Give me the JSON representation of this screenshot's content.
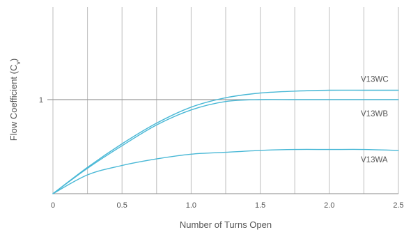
{
  "chart_data": {
    "type": "line",
    "xlabel": "Number of Turns Open",
    "ylabel": "Flow Coefficient (C",
    "ylabel_subscript": "v",
    "ylabel_suffix": ")",
    "xlim": [
      0,
      2.5
    ],
    "ylim": [
      0,
      1.5
    ],
    "x_ticks": [
      0,
      0.5,
      1.0,
      1.5,
      2.0,
      2.5
    ],
    "x_tick_labels": [
      "0",
      "0.5",
      "1.0",
      "1.5",
      "2.0",
      "2.5"
    ],
    "x_gridlines": [
      0,
      0.25,
      0.5,
      0.75,
      1.0,
      1.25,
      1.5,
      1.75,
      2.0,
      2.25,
      2.5
    ],
    "y_ticks": [
      1
    ],
    "y_tick_labels": [
      "1"
    ],
    "grid": true,
    "line_color": "#49b8d6",
    "grid_color": "#bdbdbd",
    "reference_line_color": "#9a9a9a",
    "series": [
      {
        "name": "V13WC",
        "x": [
          0,
          0.25,
          0.5,
          0.75,
          1.0,
          1.25,
          1.5,
          1.75,
          2.0,
          2.25,
          2.5
        ],
        "y": [
          0,
          0.28,
          0.53,
          0.75,
          0.92,
          1.02,
          1.07,
          1.09,
          1.1,
          1.1,
          1.1
        ]
      },
      {
        "name": "V13WB",
        "x": [
          0,
          0.25,
          0.5,
          0.75,
          1.0,
          1.25,
          1.5,
          1.75,
          2.0,
          2.25,
          2.5
        ],
        "y": [
          0,
          0.27,
          0.51,
          0.73,
          0.89,
          0.98,
          1.0,
          1.0,
          1.0,
          1.0,
          1.0
        ]
      },
      {
        "name": "V13WA",
        "x": [
          0,
          0.25,
          0.5,
          0.75,
          1.0,
          1.25,
          1.5,
          1.75,
          2.0,
          2.25,
          2.5
        ],
        "y": [
          0,
          0.2,
          0.3,
          0.37,
          0.42,
          0.44,
          0.46,
          0.47,
          0.47,
          0.47,
          0.46
        ]
      }
    ]
  }
}
